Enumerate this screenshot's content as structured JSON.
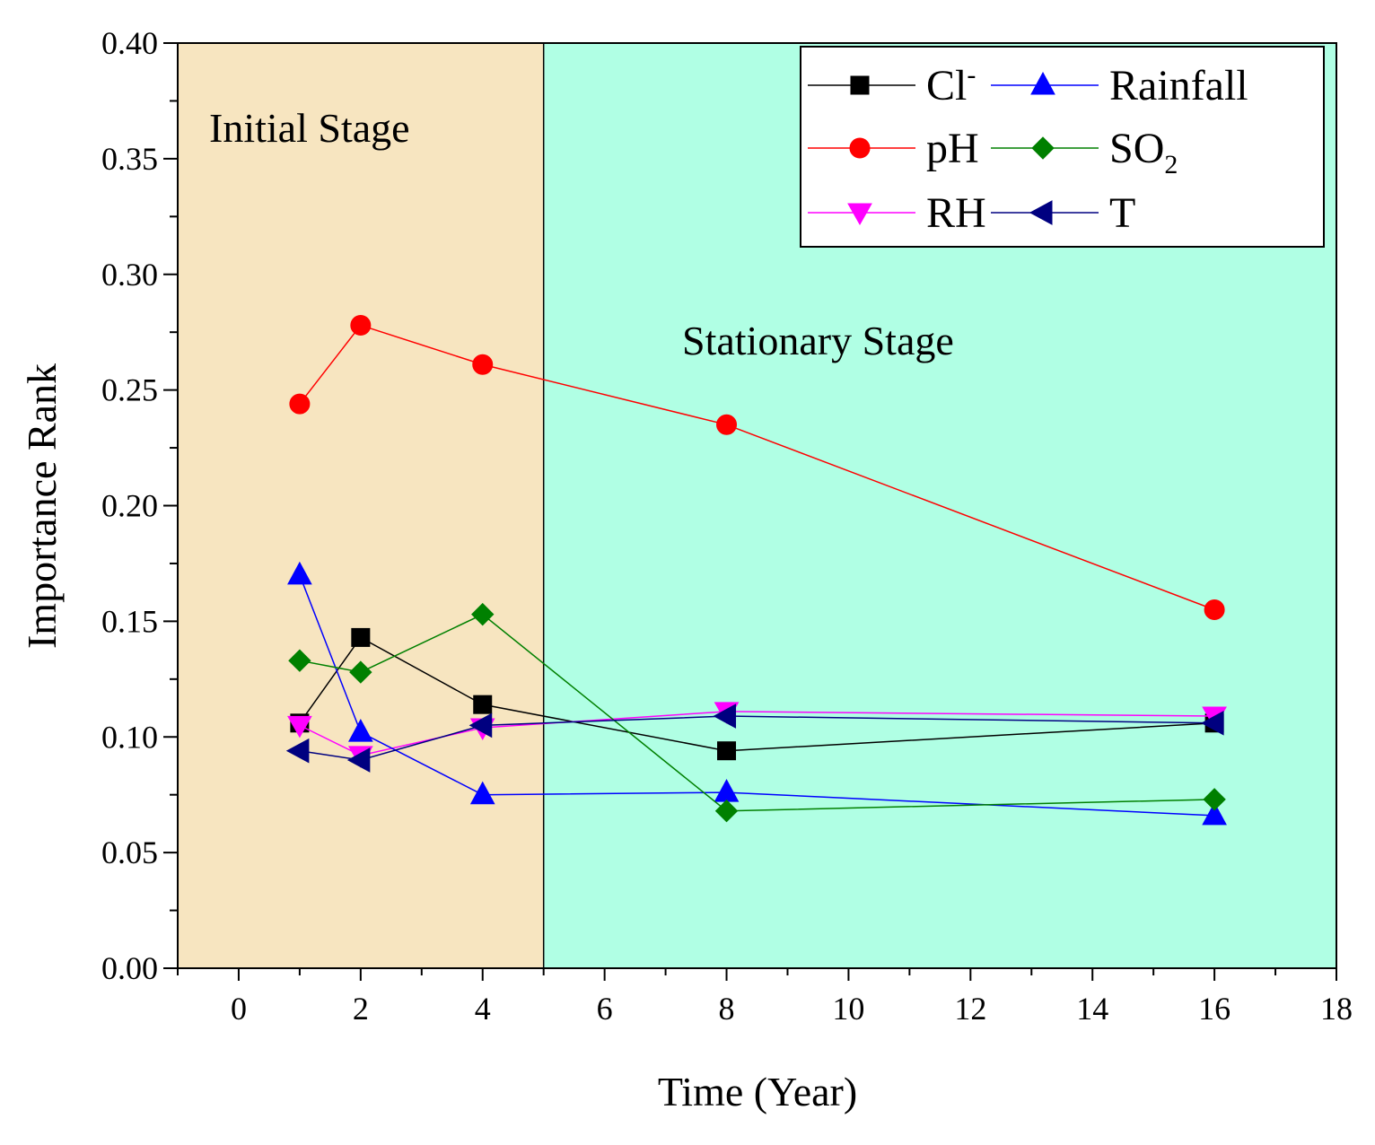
{
  "chart_data": {
    "type": "line",
    "title": "",
    "xlabel": "Time (Year)",
    "ylabel": "Importance Rank",
    "xlim": [
      -1,
      18
    ],
    "ylim": [
      0,
      0.4
    ],
    "xticks": [
      0,
      2,
      4,
      6,
      8,
      10,
      12,
      14,
      16,
      18
    ],
    "yticks": [
      0.0,
      0.05,
      0.1,
      0.15,
      0.2,
      0.25,
      0.3,
      0.35,
      0.4
    ],
    "xtick_labels": [
      "0",
      "2",
      "4",
      "6",
      "8",
      "10",
      "12",
      "14",
      "16",
      "18"
    ],
    "ytick_labels": [
      "0.00",
      "0.05",
      "0.10",
      "0.15",
      "0.20",
      "0.25",
      "0.30",
      "0.35",
      "0.40"
    ],
    "grid": false,
    "legend_position": "top-right",
    "regions": [
      {
        "label": "Initial Stage",
        "x_from": -1,
        "x_to": 5,
        "color": "#f7e5c0"
      },
      {
        "label": "Stationary Stage",
        "x_from": 5,
        "x_to": 18,
        "color": "#b0ffe4"
      }
    ],
    "x": [
      1,
      2,
      4,
      8,
      16
    ],
    "series": [
      {
        "name": "Cl",
        "sup": "-",
        "color": "#000000",
        "marker": "square",
        "values": [
          0.106,
          0.143,
          0.114,
          0.094,
          0.106
        ]
      },
      {
        "name": "pH",
        "color": "#ff0000",
        "marker": "circle",
        "values": [
          0.244,
          0.278,
          0.261,
          0.235,
          0.155
        ]
      },
      {
        "name": "RH",
        "color": "#ff00ff",
        "marker": "triangle-down",
        "values": [
          0.105,
          0.092,
          0.104,
          0.111,
          0.109
        ]
      },
      {
        "name": "Rainfall",
        "color": "#0000ff",
        "marker": "triangle-up",
        "values": [
          0.17,
          0.102,
          0.075,
          0.076,
          0.066
        ]
      },
      {
        "name": "SO",
        "sub": "2",
        "color": "#008000",
        "marker": "diamond",
        "values": [
          0.133,
          0.128,
          0.153,
          0.068,
          0.073
        ]
      },
      {
        "name": "T",
        "color": "#000080",
        "marker": "triangle-left",
        "values": [
          0.094,
          0.09,
          0.105,
          0.109,
          0.106
        ]
      }
    ]
  }
}
